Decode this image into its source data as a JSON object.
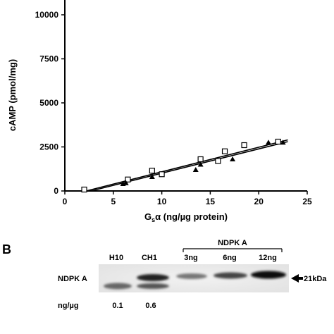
{
  "chart_data": {
    "type": "scatter",
    "ylabel": "cAMP (pmol/mg)",
    "xlabel_main": "G",
    "xlabel_sub": "s",
    "xlabel_rest": "α (ng/µg protein)",
    "xlim": [
      0,
      25
    ],
    "ylim": [
      0,
      10000
    ],
    "x_ticks": [
      0,
      5,
      10,
      15,
      20,
      25
    ],
    "y_ticks": [
      0,
      2500,
      5000,
      7500,
      10000
    ],
    "x_tick_labels": [
      "0",
      "5",
      "10",
      "15",
      "20",
      "25"
    ],
    "y_tick_labels": [
      "0",
      "2500",
      "5000",
      "7500",
      "10000"
    ],
    "series": [
      {
        "marker": "square-open",
        "points": [
          [
            2,
            80
          ],
          [
            6.5,
            650
          ],
          [
            9,
            1150
          ],
          [
            10,
            950
          ],
          [
            14,
            1800
          ],
          [
            15.8,
            1700
          ],
          [
            16.5,
            2250
          ],
          [
            18.5,
            2600
          ],
          [
            22,
            2800
          ]
        ],
        "fit": [
          [
            2.2,
            0
          ],
          [
            23,
            2900
          ]
        ]
      },
      {
        "marker": "triangle-filled",
        "points": [
          [
            6,
            400
          ],
          [
            6.3,
            450
          ],
          [
            9,
            800
          ],
          [
            13.5,
            1200
          ],
          [
            14,
            1500
          ],
          [
            17.3,
            1800
          ],
          [
            21,
            2750
          ],
          [
            22.5,
            2750
          ]
        ],
        "fit": [
          [
            2.7,
            0
          ],
          [
            23,
            2800
          ]
        ]
      }
    ]
  },
  "blot": {
    "panel_label": "B",
    "lane_labels": [
      "H10",
      "CH1",
      "3ng",
      "6ng",
      "12ng"
    ],
    "group_label": "NDPK A",
    "row_label": "NDPK A",
    "marker_label": "21kDa",
    "quant_label": "ng/µg",
    "quant_values": [
      "0.1",
      "0.6"
    ]
  }
}
